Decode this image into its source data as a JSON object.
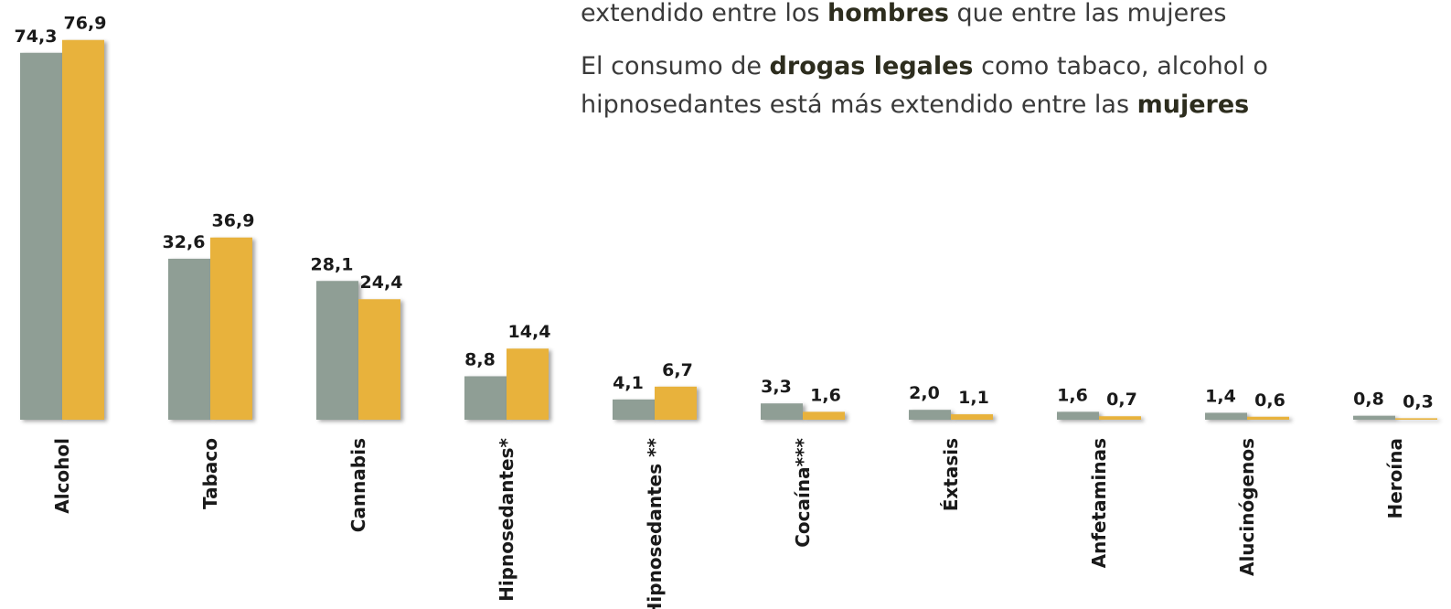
{
  "chart_data": {
    "type": "bar",
    "annotations": [
      [
        "extendido entre los ",
        "hombres",
        " que entre las mujeres"
      ],
      [
        "El consumo de ",
        "drogas legales",
        " como tabaco, alcohol o hipnosedantes está más extendido entre las ",
        "mujeres"
      ]
    ],
    "categories": [
      "Alcohol",
      "Tabaco",
      "Cannabis",
      "Hipnosedantes*",
      "Hipnosedantes **",
      "Cocaína***",
      "Éxtasis",
      "Anfetaminas",
      "Alucinógenos",
      "Heroína"
    ],
    "series": [
      {
        "color": "#8f9e95",
        "values": [
          74.3,
          32.6,
          28.1,
          8.8,
          4.1,
          3.3,
          2.0,
          1.6,
          1.4,
          0.8
        ],
        "value_labels": [
          "74,3",
          "32,6",
          "28,1",
          "8,8",
          "4,1",
          "3,3",
          "2,0",
          "1,6",
          "1,4",
          "0,8"
        ]
      },
      {
        "color": "#e8b23c",
        "values": [
          76.9,
          36.9,
          24.4,
          14.4,
          6.7,
          1.6,
          1.1,
          0.7,
          0.6,
          0.3
        ],
        "value_labels": [
          "76,9",
          "36,9",
          "24,4",
          "14,4",
          "6,7",
          "1,6",
          "1,1",
          "0,7",
          "0,6",
          "0,3"
        ]
      }
    ]
  }
}
